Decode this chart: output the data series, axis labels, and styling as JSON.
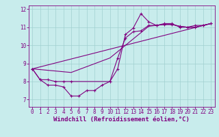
{
  "xlabel": "Windchill (Refroidissement éolien,°C)",
  "background_color": "#c8ecec",
  "line_color": "#800080",
  "grid_color": "#a0d0d0",
  "xlim": [
    -0.5,
    23.5
  ],
  "ylim": [
    6.6,
    12.2
  ],
  "xticks": [
    0,
    1,
    2,
    3,
    4,
    5,
    6,
    7,
    8,
    9,
    10,
    11,
    12,
    13,
    14,
    15,
    16,
    17,
    18,
    19,
    20,
    21,
    22,
    23
  ],
  "yticks": [
    7,
    8,
    9,
    10,
    11,
    12
  ],
  "curve1_x": [
    0,
    1,
    2,
    3,
    4,
    5,
    6,
    7,
    8,
    9,
    10,
    11,
    12,
    13,
    14,
    15,
    16,
    17,
    18,
    19,
    20,
    21,
    22,
    23
  ],
  "curve1_y": [
    8.7,
    8.1,
    7.8,
    7.8,
    7.7,
    7.2,
    7.2,
    7.5,
    7.5,
    7.8,
    8.0,
    8.7,
    10.6,
    10.95,
    11.75,
    11.3,
    11.1,
    11.2,
    11.2,
    11.0,
    11.0,
    11.1,
    11.1,
    11.2
  ],
  "curve2_x": [
    0,
    1,
    2,
    3,
    4,
    5,
    10,
    11,
    12,
    13,
    14,
    15,
    16,
    17,
    18,
    19,
    20,
    21,
    22,
    23
  ],
  "curve2_y": [
    8.7,
    8.1,
    8.1,
    8.0,
    8.0,
    8.0,
    8.0,
    9.3,
    10.4,
    10.75,
    10.8,
    11.1,
    11.1,
    11.15,
    11.15,
    11.05,
    11.0,
    11.0,
    11.1,
    11.2
  ],
  "curve3_x": [
    0,
    5,
    10,
    15,
    16,
    17,
    18,
    19,
    20,
    21,
    22,
    23
  ],
  "curve3_y": [
    8.7,
    8.5,
    9.3,
    11.05,
    11.1,
    11.15,
    11.15,
    11.05,
    11.0,
    11.0,
    11.1,
    11.2
  ],
  "curve4_x": [
    0,
    23
  ],
  "curve4_y": [
    8.7,
    11.2
  ],
  "fontsize_ticks": 5.5,
  "fontsize_label": 6.5
}
